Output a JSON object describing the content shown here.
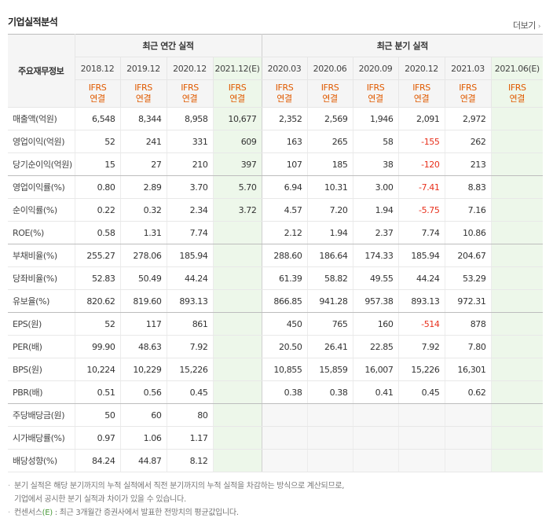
{
  "title": "기업실적분석",
  "more_label": "더보기",
  "header": {
    "corner": "주요재무정보",
    "annual_group": "최근 연간 실적",
    "quarter_group": "최근 분기 실적",
    "periods": [
      {
        "label": "2018.12",
        "est": false
      },
      {
        "label": "2019.12",
        "est": false
      },
      {
        "label": "2020.12",
        "est": false
      },
      {
        "label": "2021.12(E)",
        "est": true
      },
      {
        "label": "2020.03",
        "est": false
      },
      {
        "label": "2020.06",
        "est": false
      },
      {
        "label": "2020.09",
        "est": false
      },
      {
        "label": "2020.12",
        "est": false
      },
      {
        "label": "2021.03",
        "est": false
      },
      {
        "label": "2021.06(E)",
        "est": true
      }
    ],
    "basis_line1": "IFRS",
    "basis_line2": "연결"
  },
  "rows": [
    {
      "label": "매출액(억원)",
      "values": [
        "6,548",
        "8,344",
        "8,958",
        "10,677",
        "2,352",
        "2,569",
        "1,946",
        "2,091",
        "2,972",
        ""
      ]
    },
    {
      "label": "영업이익(억원)",
      "values": [
        "52",
        "241",
        "331",
        "609",
        "163",
        "265",
        "58",
        "-155",
        "262",
        ""
      ]
    },
    {
      "label": "당기순이익(억원)",
      "values": [
        "15",
        "27",
        "210",
        "397",
        "107",
        "185",
        "38",
        "-120",
        "213",
        ""
      ]
    },
    {
      "label": "영업이익률(%)",
      "values": [
        "0.80",
        "2.89",
        "3.70",
        "5.70",
        "6.94",
        "10.31",
        "3.00",
        "-7.41",
        "8.83",
        ""
      ]
    },
    {
      "label": "순이익률(%)",
      "values": [
        "0.22",
        "0.32",
        "2.34",
        "3.72",
        "4.57",
        "7.20",
        "1.94",
        "-5.75",
        "7.16",
        ""
      ]
    },
    {
      "label": "ROE(%)",
      "values": [
        "0.58",
        "1.31",
        "7.74",
        "",
        "2.12",
        "1.94",
        "2.37",
        "7.74",
        "10.86",
        ""
      ]
    },
    {
      "label": "부채비율(%)",
      "values": [
        "255.27",
        "278.06",
        "185.94",
        "",
        "288.60",
        "186.64",
        "174.33",
        "185.94",
        "204.67",
        ""
      ]
    },
    {
      "label": "당좌비율(%)",
      "values": [
        "52.83",
        "50.49",
        "44.24",
        "",
        "61.39",
        "58.82",
        "49.55",
        "44.24",
        "53.29",
        ""
      ]
    },
    {
      "label": "유보율(%)",
      "values": [
        "820.62",
        "819.60",
        "893.13",
        "",
        "866.85",
        "941.28",
        "957.38",
        "893.13",
        "972.31",
        ""
      ]
    },
    {
      "label": "EPS(원)",
      "values": [
        "52",
        "117",
        "861",
        "",
        "450",
        "765",
        "160",
        "-514",
        "878",
        ""
      ]
    },
    {
      "label": "PER(배)",
      "values": [
        "99.90",
        "48.63",
        "7.92",
        "",
        "20.50",
        "26.41",
        "22.85",
        "7.92",
        "7.80",
        ""
      ]
    },
    {
      "label": "BPS(원)",
      "values": [
        "10,224",
        "10,229",
        "15,226",
        "",
        "10,855",
        "15,859",
        "16,007",
        "15,226",
        "16,301",
        ""
      ]
    },
    {
      "label": "PBR(배)",
      "values": [
        "0.51",
        "0.56",
        "0.45",
        "",
        "0.38",
        "0.38",
        "0.41",
        "0.45",
        "0.62",
        ""
      ]
    },
    {
      "label": "주당배당금(원)",
      "values": [
        "50",
        "60",
        "80",
        "",
        "",
        "",
        "",
        "",
        "",
        ""
      ]
    },
    {
      "label": "시가배당률(%)",
      "values": [
        "0.97",
        "1.06",
        "1.17",
        "",
        "",
        "",
        "",
        "",
        "",
        ""
      ]
    },
    {
      "label": "배당성향(%)",
      "values": [
        "84.24",
        "44.87",
        "8.12",
        "",
        "",
        "",
        "",
        "",
        "",
        ""
      ]
    }
  ],
  "group_ends": [
    2,
    5,
    8,
    12
  ],
  "empty_gray_from_row": 13,
  "notes": {
    "line1": "분기 실적은 해당 분기까지의 누적 실적에서 직전 분기까지의 누적 실적을 차감하는 방식으로 계산되므로,",
    "line2": "기업에서 공시한 분기 실적과 차이가 있을 수 있습니다.",
    "line3_prefix": "컨센서스",
    "line3_mark": "(E)",
    "line3_rest": " : 최근 3개월간 증권사에서 발표한 전망치의 평균값입니다."
  },
  "colors": {
    "negative": "#e8301c",
    "basis": "#e05a00",
    "estimate_bg": "#edf7ea",
    "header_bg": "#f5f5f5"
  }
}
